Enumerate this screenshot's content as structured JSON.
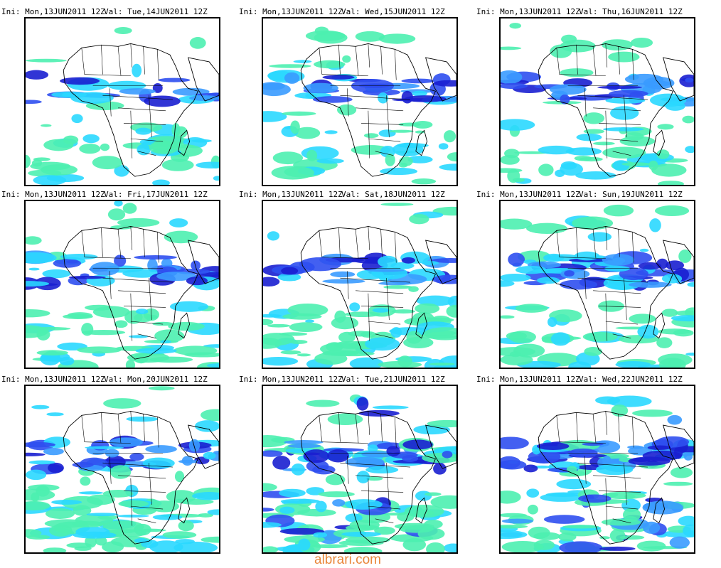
{
  "panels": [
    {
      "ini": "Ini: Mon,13JUN2011 12Z",
      "val": "Val: Tue,14JUN2011 12Z"
    },
    {
      "ini": "Ini: Mon,13JUN2011 12Z",
      "val": "Val: Wed,15JUN2011 12Z"
    },
    {
      "ini": "Ini: Mon,13JUN2011 12Z",
      "val": "Val: Thu,16JUN2011 12Z"
    },
    {
      "ini": "Ini: Mon,13JUN2011 12Z",
      "val": "Val: Fri,17JUN2011 12Z"
    },
    {
      "ini": "Ini: Mon,13JUN2011 12Z",
      "val": "Val: Sat,18JUN2011 12Z"
    },
    {
      "ini": "Ini: Mon,13JUN2011 12Z",
      "val": "Val: Sun,19JUN2011 12Z"
    },
    {
      "ini": "Ini: Mon,13JUN2011 12Z",
      "val": "Val: Mon,20JUN2011 12Z"
    },
    {
      "ini": "Ini: Mon,13JUN2011 12Z",
      "val": "Val: Tue,21JUN2011 12Z"
    },
    {
      "ini": "Ini: Mon,13JUN2011 12Z",
      "val": "Val: Wed,22JUN2011 12Z"
    }
  ],
  "watermark": "albrari.com",
  "colors": {
    "light": "#4cf0b0",
    "cyan": "#2ad8ff",
    "mid": "#3a9bff",
    "blue": "#2f4ff0",
    "dark": "#1a1fd0",
    "purple": "#8a12d8",
    "border": "#000000"
  }
}
